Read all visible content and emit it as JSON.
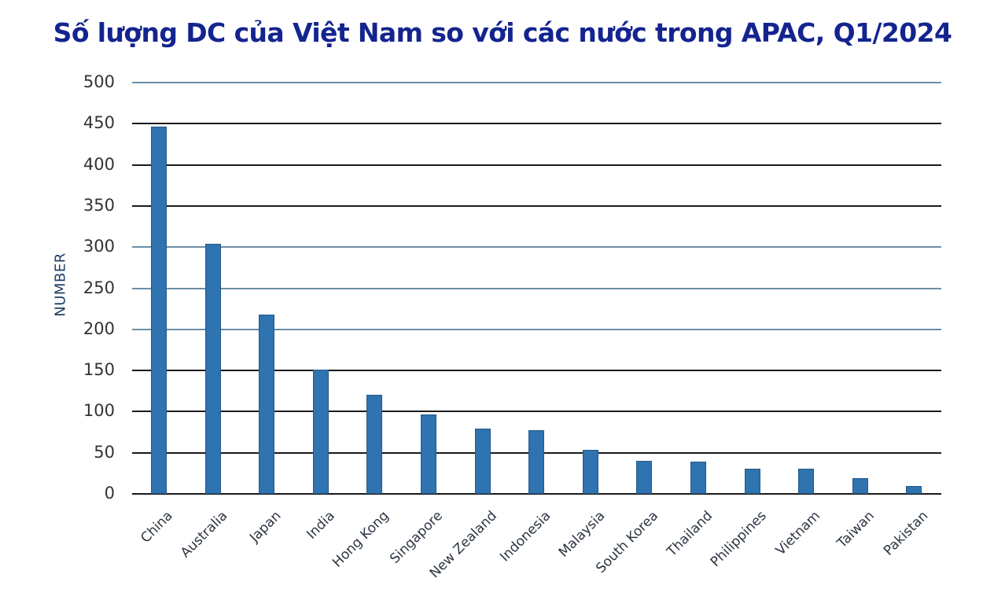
{
  "title": "Số lượng DC của Việt Nam so với các nước trong APAC, Q1/2024",
  "colors": {
    "title": "#14248f",
    "bar": "#2f73b0",
    "grid_dark": "#1a1a1a",
    "grid_blue": "#6b8ea6"
  },
  "chart_data": {
    "type": "bar",
    "title": "Số lượng DC của Việt Nam so với các nước trong APAC, Q1/2024",
    "xlabel": "",
    "ylabel": "NUMBER",
    "ylim": [
      0,
      500
    ],
    "yticks": [
      0,
      50,
      100,
      150,
      200,
      250,
      300,
      350,
      400,
      450,
      500
    ],
    "grid": true,
    "legend": null,
    "categories": [
      "China",
      "Australia",
      "Japan",
      "India",
      "Hong Kong",
      "Singapore",
      "New Zealand",
      "Indonesia",
      "Malaysia",
      "South Korea",
      "Thailand",
      "Philippines",
      "Vietnam",
      "Taiwan",
      "Pakistan"
    ],
    "values": [
      446,
      304,
      218,
      151,
      120,
      97,
      79,
      77,
      54,
      40,
      39,
      31,
      31,
      19,
      10
    ]
  },
  "axis": {
    "ylabel": "NUMBER",
    "yticks": [
      "0",
      "50",
      "100",
      "150",
      "200",
      "250",
      "300",
      "350",
      "400",
      "450",
      "500"
    ]
  }
}
